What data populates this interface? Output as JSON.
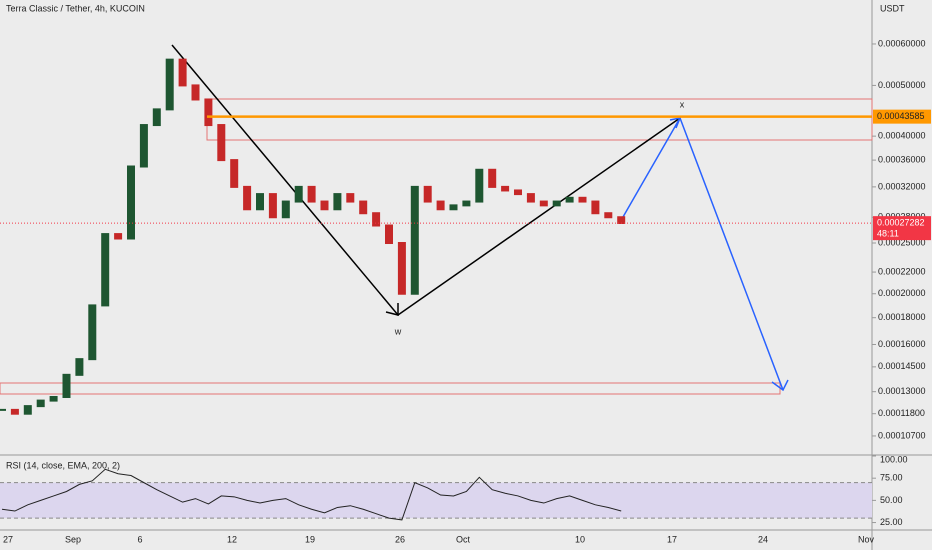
{
  "chart_data": {
    "type": "candlestick",
    "title": "Terra Classic / Tether, 4h, KUCOIN",
    "currency": "USDT",
    "log_scale": true,
    "ylim": [
      9.84e-05,
      0.000728
    ],
    "yticks": [
      {
        "value": 0.0006,
        "label": "0.00060000"
      },
      {
        "value": 0.0005,
        "label": "0.00050000"
      },
      {
        "value": 0.0004,
        "label": "0.00040000"
      },
      {
        "value": 0.00036,
        "label": "0.00036000"
      },
      {
        "value": 0.00032,
        "label": "0.00032000"
      },
      {
        "value": 0.00028,
        "label": "0.00028000"
      },
      {
        "value": 0.00025,
        "label": "0.00025000"
      },
      {
        "value": 0.00022,
        "label": "0.00022000"
      },
      {
        "value": 0.0002,
        "label": "0.00020000"
      },
      {
        "value": 0.00018,
        "label": "0.00018000"
      },
      {
        "value": 0.00016,
        "label": "0.00016000"
      },
      {
        "value": 0.000145,
        "label": "0.00014500"
      },
      {
        "value": 0.00013,
        "label": "0.00013000"
      },
      {
        "value": 0.000118,
        "label": "0.00011800"
      },
      {
        "value": 0.000107,
        "label": "0.00010700"
      }
    ],
    "xticks": [
      "27",
      "Sep",
      "6",
      "12",
      "19",
      "26",
      "Oct",
      "10",
      "17",
      "24",
      "Nov"
    ],
    "close": [
      0.00012,
      0.000118,
      0.000122,
      0.000125,
      0.000127,
      0.00014,
      0.00015,
      0.00019,
      0.00026,
      0.000255,
      0.00035,
      0.00042,
      0.00045,
      0.00056,
      0.0005,
      0.00047,
      0.00042,
      0.00036,
      0.00032,
      0.00029,
      0.00031,
      0.00028,
      0.0003,
      0.00032,
      0.0003,
      0.00029,
      0.00031,
      0.0003,
      0.000285,
      0.00027,
      0.00025,
      0.0002,
      0.00032,
      0.0003,
      0.00029,
      0.000295,
      0.0003,
      0.000345,
      0.00032,
      0.000315,
      0.00031,
      0.0003,
      0.000295,
      0.0003,
      0.000305,
      0.0003,
      0.000285,
      0.00028,
      0.000273
    ],
    "up_color": "#1e5631",
    "down_color": "#c62828",
    "level_price": {
      "value": 0.00043585,
      "label": "0.00043585",
      "color": "#ff9800"
    },
    "last_price": {
      "value": 0.00027282,
      "label": "0.00027282",
      "countdown": "48:11",
      "color": "#f23645"
    },
    "annotations": [
      "x",
      "w"
    ],
    "rsi": {
      "label": "RSI (14, close, EMA, 200, 2)",
      "ylim": [
        20,
        100
      ],
      "yticks": [
        {
          "value": 100,
          "label": "100.00"
        },
        {
          "value": 75,
          "label": "75.00"
        },
        {
          "value": 50,
          "label": "50.00"
        },
        {
          "value": 25,
          "label": "25.00"
        }
      ],
      "band": [
        30,
        70
      ],
      "color": "#222222",
      "values": [
        40,
        38,
        45,
        50,
        55,
        60,
        68,
        72,
        85,
        80,
        78,
        70,
        62,
        55,
        48,
        52,
        46,
        55,
        54,
        50,
        47,
        50,
        52,
        45,
        40,
        36,
        42,
        44,
        40,
        35,
        30,
        28,
        70,
        64,
        56,
        55,
        60,
        76,
        62,
        58,
        55,
        50,
        47,
        52,
        55,
        50,
        45,
        42,
        38
      ]
    }
  }
}
